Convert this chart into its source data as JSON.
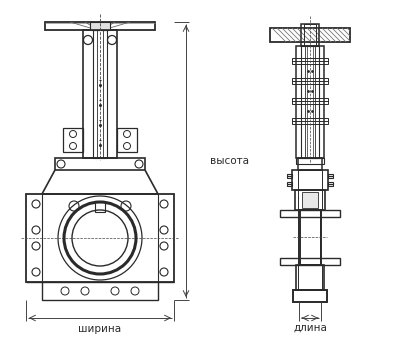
{
  "bg_color": "#ffffff",
  "line_color": "#2a2a2a",
  "dim_line_color": "#444444",
  "text_color": "#2a2a2a",
  "label_vysota": "высота",
  "label_shirina": "ширина",
  "label_dlina": "длина",
  "fig_width": 4.0,
  "fig_height": 3.46,
  "dpi": 100
}
